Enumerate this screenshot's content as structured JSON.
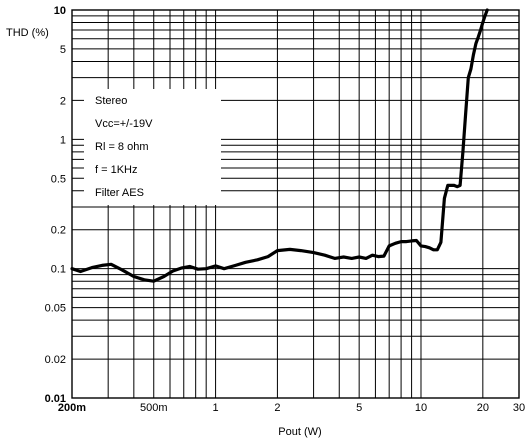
{
  "chart_data": {
    "type": "line",
    "title": "",
    "xlabel": "Pout (W)",
    "ylabel": "THD (%)",
    "x_scale": "log",
    "y_scale": "log",
    "xlim": [
      0.2,
      30
    ],
    "ylim": [
      0.01,
      10
    ],
    "grid": true,
    "x_ticks": [
      {
        "value": 0.2,
        "label": "200m"
      },
      {
        "value": 0.5,
        "label": "500m"
      },
      {
        "value": 1,
        "label": "1"
      },
      {
        "value": 2,
        "label": "2"
      },
      {
        "value": 5,
        "label": "5"
      },
      {
        "value": 10,
        "label": "10"
      },
      {
        "value": 20,
        "label": "20"
      },
      {
        "value": 30,
        "label": "30"
      }
    ],
    "y_ticks": [
      {
        "value": 0.01,
        "label": "0.01"
      },
      {
        "value": 0.02,
        "label": "0.02"
      },
      {
        "value": 0.05,
        "label": "0.05"
      },
      {
        "value": 0.1,
        "label": "0.1"
      },
      {
        "value": 0.2,
        "label": "0.2"
      },
      {
        "value": 0.5,
        "label": "0.5"
      },
      {
        "value": 1,
        "label": "1"
      },
      {
        "value": 2,
        "label": "2"
      },
      {
        "value": 5,
        "label": "5"
      },
      {
        "value": 10,
        "label": "10"
      }
    ],
    "annotation_lines": [
      "Stereo",
      "Vcc=+/-19V",
      "Rl = 8 ohm",
      "f = 1KHz",
      "Filter AES"
    ],
    "series": [
      {
        "x": [
          0.2,
          0.22,
          0.25,
          0.28,
          0.31,
          0.35,
          0.4,
          0.45,
          0.5,
          0.56,
          0.62,
          0.68,
          0.75,
          0.82,
          0.9,
          1.0,
          1.1,
          1.25,
          1.4,
          1.6,
          1.8,
          2.0,
          2.3,
          2.6,
          3.0,
          3.4,
          3.8,
          4.2,
          4.6,
          5.0,
          5.4,
          5.8,
          6.2,
          6.6,
          7.0,
          7.5,
          8.0,
          8.5,
          9.0,
          9.5,
          10.0,
          10.5,
          11.0,
          11.5,
          12.0,
          12.5,
          13.0,
          13.5,
          14.5,
          15.0,
          15.5,
          16.0,
          16.5,
          17.0,
          17.5,
          18.0,
          18.5,
          19.0,
          19.5,
          20.0,
          20.5,
          21.0
        ],
        "y": [
          0.1,
          0.095,
          0.102,
          0.106,
          0.108,
          0.098,
          0.087,
          0.082,
          0.08,
          0.087,
          0.096,
          0.101,
          0.104,
          0.099,
          0.1,
          0.105,
          0.1,
          0.106,
          0.112,
          0.117,
          0.124,
          0.138,
          0.141,
          0.138,
          0.133,
          0.127,
          0.12,
          0.123,
          0.12,
          0.123,
          0.12,
          0.127,
          0.124,
          0.125,
          0.15,
          0.157,
          0.162,
          0.162,
          0.164,
          0.165,
          0.15,
          0.148,
          0.145,
          0.14,
          0.14,
          0.16,
          0.35,
          0.44,
          0.44,
          0.43,
          0.44,
          0.8,
          1.6,
          3.0,
          3.5,
          4.5,
          5.5,
          6.2,
          7.0,
          8.0,
          9.0,
          10.0
        ]
      }
    ]
  }
}
